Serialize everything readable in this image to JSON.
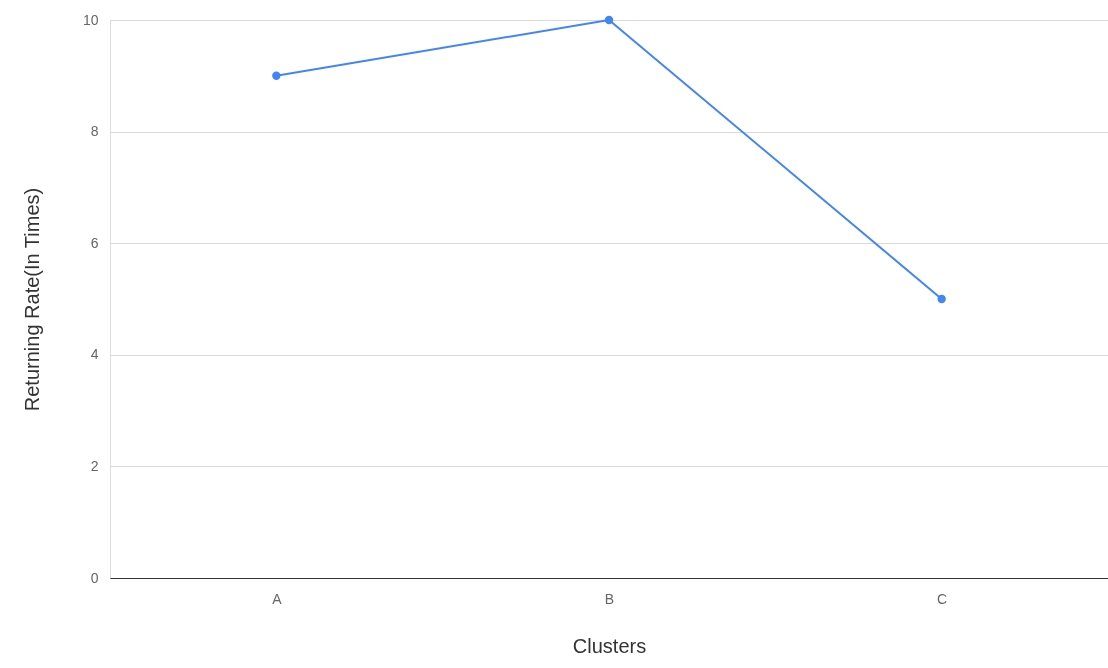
{
  "chart_data": {
    "type": "line",
    "xlabel": "Clusters",
    "ylabel": "Returning Rate(In Times)",
    "categories": [
      "A",
      "B",
      "C"
    ],
    "series": [
      {
        "color": "#4285f4",
        "values": [
          9,
          10,
          5
        ]
      }
    ],
    "ylim": [
      0,
      10
    ],
    "yticks": [
      0,
      2,
      4,
      6,
      8,
      10
    ],
    "grid": "y",
    "marker": "circle",
    "line_style": "solid"
  }
}
